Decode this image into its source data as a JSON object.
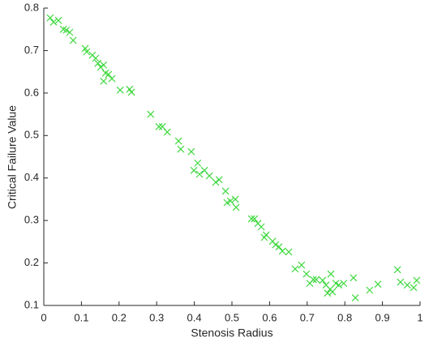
{
  "chart_data": {
    "type": "scatter",
    "x_label": "Stenosis Radius",
    "y_label": "Critical Failure Value",
    "color": "#3fd83f",
    "marker": "x",
    "x": [
      0.017,
      0.026,
      0.039,
      0.052,
      0.06,
      0.069,
      0.078,
      0.11,
      0.114,
      0.129,
      0.138,
      0.144,
      0.151,
      0.159,
      0.164,
      0.159,
      0.172,
      0.181,
      0.203,
      0.228,
      0.233,
      0.284,
      0.306,
      0.315,
      0.328,
      0.358,
      0.364,
      0.392,
      0.399,
      0.409,
      0.414,
      0.427,
      0.44,
      0.457,
      0.466,
      0.483,
      0.487,
      0.496,
      0.509,
      0.511,
      0.552,
      0.56,
      0.569,
      0.578,
      0.586,
      0.591,
      0.608,
      0.616,
      0.625,
      0.634,
      0.651,
      0.668,
      0.685,
      0.698,
      0.707,
      0.716,
      0.724,
      0.741,
      0.75,
      0.754,
      0.761,
      0.763,
      0.767,
      0.776,
      0.784,
      0.797,
      0.823,
      0.828,
      0.866,
      0.888,
      0.94,
      0.948,
      0.966,
      0.983,
      0.991
    ],
    "values": [
      0.777,
      0.767,
      0.771,
      0.75,
      0.748,
      0.743,
      0.724,
      0.705,
      0.697,
      0.689,
      0.682,
      0.67,
      0.661,
      0.666,
      0.647,
      0.628,
      0.644,
      0.634,
      0.607,
      0.609,
      0.602,
      0.55,
      0.521,
      0.521,
      0.508,
      0.487,
      0.468,
      0.462,
      0.418,
      0.435,
      0.409,
      0.418,
      0.405,
      0.39,
      0.396,
      0.369,
      0.342,
      0.346,
      0.35,
      0.331,
      0.304,
      0.304,
      0.293,
      0.285,
      0.26,
      0.266,
      0.251,
      0.243,
      0.238,
      0.228,
      0.226,
      0.186,
      0.195,
      0.174,
      0.152,
      0.161,
      0.161,
      0.159,
      0.148,
      0.129,
      0.138,
      0.174,
      0.132,
      0.152,
      0.148,
      0.152,
      0.165,
      0.118,
      0.136,
      0.15,
      0.184,
      0.155,
      0.148,
      0.142,
      0.159
    ],
    "xlim": [
      0,
      1
    ],
    "ylim": [
      0.1,
      0.8
    ],
    "xticks": [
      0,
      0.1,
      0.2,
      0.3,
      0.4,
      0.5,
      0.6,
      0.7,
      0.8,
      0.9,
      1
    ],
    "yticks": [
      0.1,
      0.2,
      0.3,
      0.4,
      0.5,
      0.6,
      0.7,
      0.8
    ]
  }
}
